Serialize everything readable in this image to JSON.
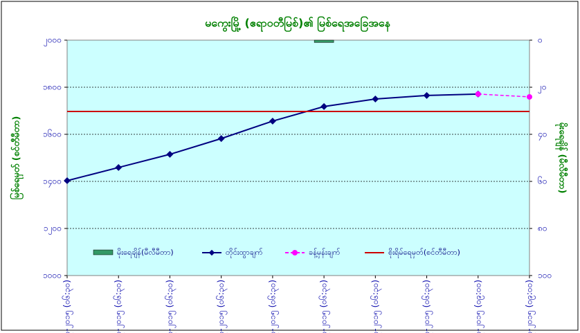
{
  "chart_data": {
    "type": "line",
    "title": "မကွေးမြို့ (ဧရာဝတီမြစ်)၏ မြစ်ရေအခြေအနေ",
    "y_label": "မြစ်ရေမှတ် (စင်တီမီတာ)",
    "y2_label": "မိုးရေချိန် (မီလီမီတာ)",
    "categories": [
      "၉-၇-၂၀၁၅ (၀၆:၃၀)",
      "၁၀-၇-၂၀၁၅ (၀၆:၃၀)",
      "၁၁-၇-၂၀၁၅ (၀၆:၃၀)",
      "၁၂-၇-၂၀၁၅ (၀၆:၃၀)",
      "၁၃-၇-၂၀၁၅ (၀၆:၃၀)",
      "၁၄-၇-၂၀၁၅ (၀၆:၃၀)",
      "၁၅-၇-၂၀၁၅ (၀၆:၃၀)",
      "၁၆-၇-၂၀၁၅ (၀၆:၃၀)",
      "၁၇-၇-၂၀၁၅ (၀၉:၀၀)",
      "၁၈-၇-၂၀၁၅ (၀၉:၀၀)"
    ],
    "series": [
      {
        "name": "မိုးရေချိန်(မီလီမီတာ)",
        "kind": "bar",
        "axis": "y2",
        "color": "#339966",
        "values": [
          0,
          0,
          0,
          0,
          0,
          1,
          0,
          0,
          0,
          0
        ]
      },
      {
        "name": "တိုင်းထွာချက်",
        "kind": "line",
        "color": "#000080",
        "values": [
          1403,
          1459,
          1515,
          1582,
          1656,
          1718,
          1750,
          1765,
          1771,
          null
        ]
      },
      {
        "name": "ခန့်မှန်းချက်",
        "kind": "dashed",
        "color": "#ff00ff",
        "values": [
          null,
          null,
          null,
          null,
          null,
          null,
          null,
          null,
          1771,
          1759
        ]
      },
      {
        "name": "စိုးရိမ်ရေမှတ်(စင်တီမီတာ)",
        "kind": "hline",
        "color": "#cc0000",
        "value": 1697
      }
    ],
    "ylim": [
      1000,
      2000
    ],
    "yticks": [
      {
        "value": 1000,
        "label": "၁၀၀၀"
      },
      {
        "value": 1200,
        "label": "၁၂၀၀"
      },
      {
        "value": 1400,
        "label": "၁၄၀၀"
      },
      {
        "value": 1600,
        "label": "၁၆၀၀"
      },
      {
        "value": 1800,
        "label": "၁၈၀၀"
      },
      {
        "value": 2000,
        "label": "၂၀၀၀"
      }
    ],
    "y2lim": [
      100,
      0
    ],
    "y2ticks": [
      {
        "value": 0,
        "label": "၀"
      },
      {
        "value": 20,
        "label": "၂၀"
      },
      {
        "value": 40,
        "label": "၄၀"
      },
      {
        "value": 60,
        "label": "၆၀"
      },
      {
        "value": 80,
        "label": "၈၀"
      },
      {
        "value": 100,
        "label": "၁၀၀"
      }
    ],
    "grid": true,
    "legend": "bottom"
  }
}
